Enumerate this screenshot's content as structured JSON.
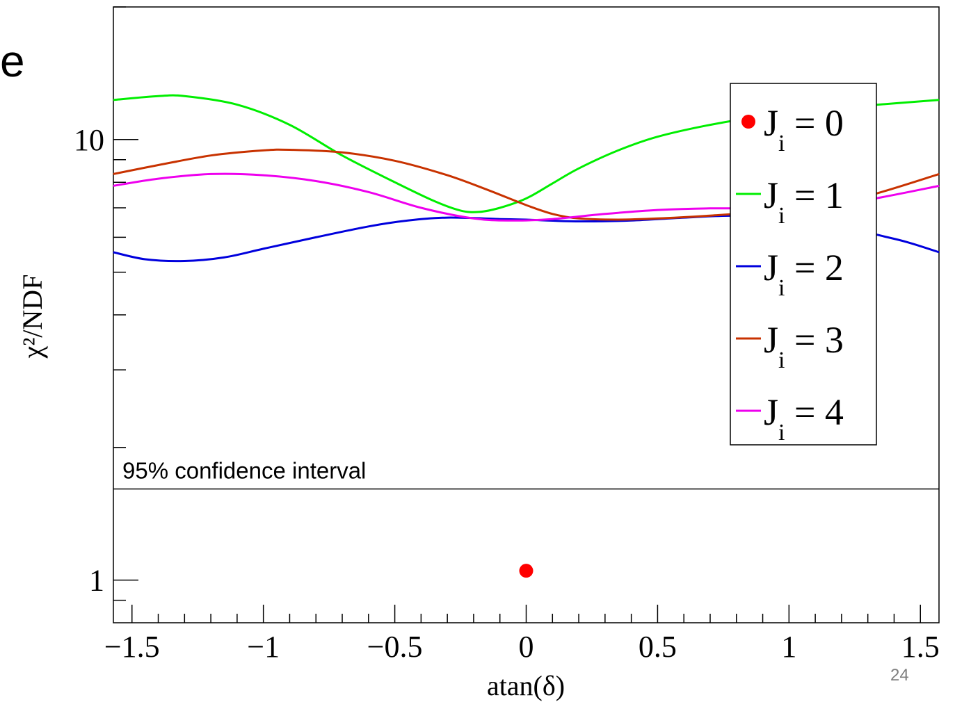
{
  "slide": {
    "title_fragment": "e",
    "page_number": "24"
  },
  "chart_data": {
    "type": "line",
    "title": "",
    "xlabel": "atan(δ)",
    "ylabel": "χ²/NDF",
    "xlim": [
      -1.5708,
      1.5708
    ],
    "ylim": [
      0.8,
      20
    ],
    "yscale": "log",
    "x_ticks": [
      "−1.5",
      "−1",
      "−0.5",
      "0",
      "0.5",
      "1",
      "1.5"
    ],
    "y_ticks": [
      "1",
      "10"
    ],
    "grid": false,
    "legend_position": "top-right",
    "annotation": "95% confidence interval",
    "annotation_line_y": 1.61,
    "series": [
      {
        "name": "J = 0",
        "label_main": "J",
        "label_sub": "i",
        "label_rest": " = 0",
        "style": "marker",
        "color": "#ff0000",
        "points": [
          [
            0.0,
            1.05
          ]
        ]
      },
      {
        "name": "J = 1",
        "label_main": "J",
        "label_sub": "i",
        "label_rest": " = 1",
        "style": "line",
        "color": "#00ee00",
        "points": [
          [
            -1.571,
            12.3
          ],
          [
            -1.4,
            12.55
          ],
          [
            -1.3,
            12.55
          ],
          [
            -1.1,
            12.0
          ],
          [
            -0.9,
            10.8
          ],
          [
            -0.7,
            9.2
          ],
          [
            -0.5,
            8.0
          ],
          [
            -0.35,
            7.25
          ],
          [
            -0.25,
            6.9
          ],
          [
            -0.18,
            6.85
          ],
          [
            -0.1,
            7.0
          ],
          [
            0.0,
            7.35
          ],
          [
            0.1,
            7.95
          ],
          [
            0.2,
            8.6
          ],
          [
            0.35,
            9.45
          ],
          [
            0.5,
            10.15
          ],
          [
            0.7,
            10.8
          ],
          [
            0.9,
            11.3
          ],
          [
            1.1,
            11.65
          ],
          [
            1.3,
            11.95
          ],
          [
            1.571,
            12.3
          ]
        ]
      },
      {
        "name": "J = 2",
        "label_main": "J",
        "label_sub": "i",
        "label_rest": " = 2",
        "style": "line",
        "color": "#0000dd",
        "points": [
          [
            -1.571,
            5.55
          ],
          [
            -1.45,
            5.35
          ],
          [
            -1.3,
            5.3
          ],
          [
            -1.15,
            5.4
          ],
          [
            -1.0,
            5.65
          ],
          [
            -0.8,
            6.0
          ],
          [
            -0.6,
            6.35
          ],
          [
            -0.45,
            6.55
          ],
          [
            -0.3,
            6.65
          ],
          [
            -0.1,
            6.6
          ],
          [
            0.0,
            6.58
          ],
          [
            0.2,
            6.52
          ],
          [
            0.4,
            6.55
          ],
          [
            0.6,
            6.65
          ],
          [
            0.8,
            6.72
          ],
          [
            1.0,
            6.62
          ],
          [
            1.2,
            6.35
          ],
          [
            1.35,
            6.05
          ],
          [
            1.45,
            5.85
          ],
          [
            1.571,
            5.55
          ]
        ]
      },
      {
        "name": "J = 3",
        "label_main": "J",
        "label_sub": "i",
        "label_rest": " = 3",
        "style": "line",
        "color": "#c83200",
        "points": [
          [
            -1.571,
            8.35
          ],
          [
            -1.4,
            8.75
          ],
          [
            -1.2,
            9.2
          ],
          [
            -1.0,
            9.45
          ],
          [
            -0.9,
            9.48
          ],
          [
            -0.7,
            9.35
          ],
          [
            -0.5,
            8.95
          ],
          [
            -0.3,
            8.3
          ],
          [
            -0.15,
            7.7
          ],
          [
            0.0,
            7.1
          ],
          [
            0.1,
            6.78
          ],
          [
            0.2,
            6.62
          ],
          [
            0.35,
            6.58
          ],
          [
            0.5,
            6.62
          ],
          [
            0.7,
            6.72
          ],
          [
            0.9,
            6.85
          ],
          [
            1.1,
            7.05
          ],
          [
            1.3,
            7.45
          ],
          [
            1.571,
            8.35
          ]
        ]
      },
      {
        "name": "J = 4",
        "label_main": "J",
        "label_sub": "i",
        "label_rest": " = 4",
        "style": "line",
        "color": "#ee00ee",
        "points": [
          [
            -1.571,
            7.85
          ],
          [
            -1.4,
            8.15
          ],
          [
            -1.2,
            8.35
          ],
          [
            -1.0,
            8.3
          ],
          [
            -0.8,
            8.05
          ],
          [
            -0.6,
            7.6
          ],
          [
            -0.4,
            7.0
          ],
          [
            -0.2,
            6.62
          ],
          [
            -0.05,
            6.55
          ],
          [
            0.1,
            6.6
          ],
          [
            0.3,
            6.78
          ],
          [
            0.5,
            6.92
          ],
          [
            0.7,
            6.98
          ],
          [
            0.9,
            6.98
          ],
          [
            1.1,
            7.05
          ],
          [
            1.3,
            7.3
          ],
          [
            1.571,
            7.85
          ]
        ]
      }
    ]
  }
}
